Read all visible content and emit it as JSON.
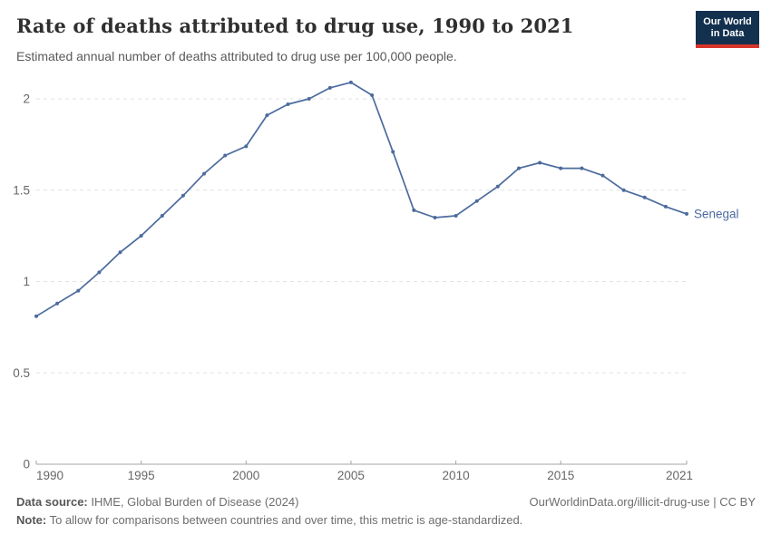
{
  "header": {
    "title": "Rate of deaths attributed to drug use, 1990 to 2021",
    "subtitle": "Estimated annual number of deaths attributed to drug use per 100,000 people.",
    "logo_line1": "Our World",
    "logo_line2": "in Data"
  },
  "chart_data": {
    "type": "line",
    "title": "Rate of deaths attributed to drug use, 1990 to 2021",
    "x": [
      1990,
      1991,
      1992,
      1993,
      1994,
      1995,
      1996,
      1997,
      1998,
      1999,
      2000,
      2001,
      2002,
      2003,
      2004,
      2005,
      2006,
      2007,
      2008,
      2009,
      2010,
      2011,
      2012,
      2013,
      2014,
      2015,
      2016,
      2017,
      2018,
      2019,
      2020,
      2021
    ],
    "series": [
      {
        "name": "Senegal",
        "color": "#4C6B9E",
        "values": [
          0.81,
          0.88,
          0.95,
          1.05,
          1.16,
          1.25,
          1.36,
          1.47,
          1.59,
          1.69,
          1.74,
          1.91,
          1.97,
          2.0,
          2.06,
          2.09,
          2.02,
          1.71,
          1.39,
          1.35,
          1.36,
          1.44,
          1.52,
          1.62,
          1.65,
          1.62,
          1.62,
          1.58,
          1.5,
          1.46,
          1.41,
          1.37
        ]
      }
    ],
    "end_label": "Senegal",
    "x_ticks": [
      1990,
      1995,
      2000,
      2005,
      2010,
      2015,
      2021
    ],
    "y_ticks": [
      0,
      0.5,
      1,
      1.5,
      2
    ],
    "xlim": [
      1990,
      2021
    ],
    "ylim": [
      0,
      2.17
    ],
    "grid": "horizontal-dashed",
    "legend_position": "end-of-line",
    "colors": {
      "grid": "#E2E2E2",
      "axis": "#A5A5A5",
      "tick_text": "#666666"
    }
  },
  "footer": {
    "datasource_label": "Data source:",
    "datasource_text": " IHME, Global Burden of Disease (2024)",
    "url": "OurWorldinData.org/illicit-drug-use | CC BY",
    "note_label": "Note:",
    "note_text": " To allow for comparisons between countries and over time, this metric is age-standardized."
  }
}
